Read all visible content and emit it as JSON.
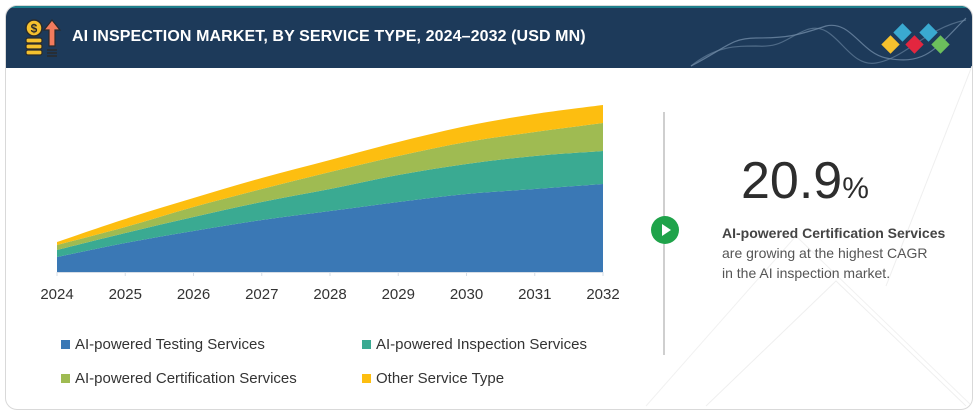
{
  "header": {
    "title": "AI INSPECTION MARKET, BY SERVICE TYPE, 2024–2032 (USD MN)",
    "icon": "money-growth-icon",
    "brand_mark_colors": [
      "#f5c12e",
      "#3aa9d0",
      "#e3263f",
      "#3aa9d0",
      "#6cbf5c"
    ]
  },
  "chart_data": {
    "type": "area",
    "stacked": true,
    "title": "AI INSPECTION MARKET, BY SERVICE TYPE, 2024–2032 (USD MN)",
    "xlabel": "",
    "ylabel": "",
    "y_axis_visible": false,
    "grid": false,
    "value_unit_note": "relative scale (no y-axis values shown)",
    "categories": [
      "2024",
      "2025",
      "2026",
      "2027",
      "2028",
      "2029",
      "2030",
      "2031",
      "2032"
    ],
    "series": [
      {
        "name": "AI-powered Testing Services",
        "color": "#3a78b5",
        "values": [
          15,
          29,
          41,
          52,
          61,
          70,
          78,
          83,
          88
        ]
      },
      {
        "name": "AI-powered Inspection Services",
        "color": "#3aaa92",
        "values": [
          7,
          10,
          14,
          18,
          22,
          27,
          30,
          33,
          33
        ]
      },
      {
        "name": "AI-powered Certification Services",
        "color": "#9fbb52",
        "values": [
          5,
          6,
          10,
          13,
          17,
          19,
          22,
          24,
          28
        ]
      },
      {
        "name": "Other Service Type",
        "color": "#fdbe10",
        "values": [
          3,
          8,
          9,
          11,
          12,
          14,
          16,
          18,
          18
        ]
      }
    ],
    "legend_position": "bottom"
  },
  "callout": {
    "value": "20.9",
    "unit": "%",
    "highlight": "AI-powered Certification Services",
    "text_line1": "are growing at the highest CAGR",
    "text_line2": "in the AI inspection market.",
    "icon": "play-icon",
    "accent": "#1fa34a"
  }
}
